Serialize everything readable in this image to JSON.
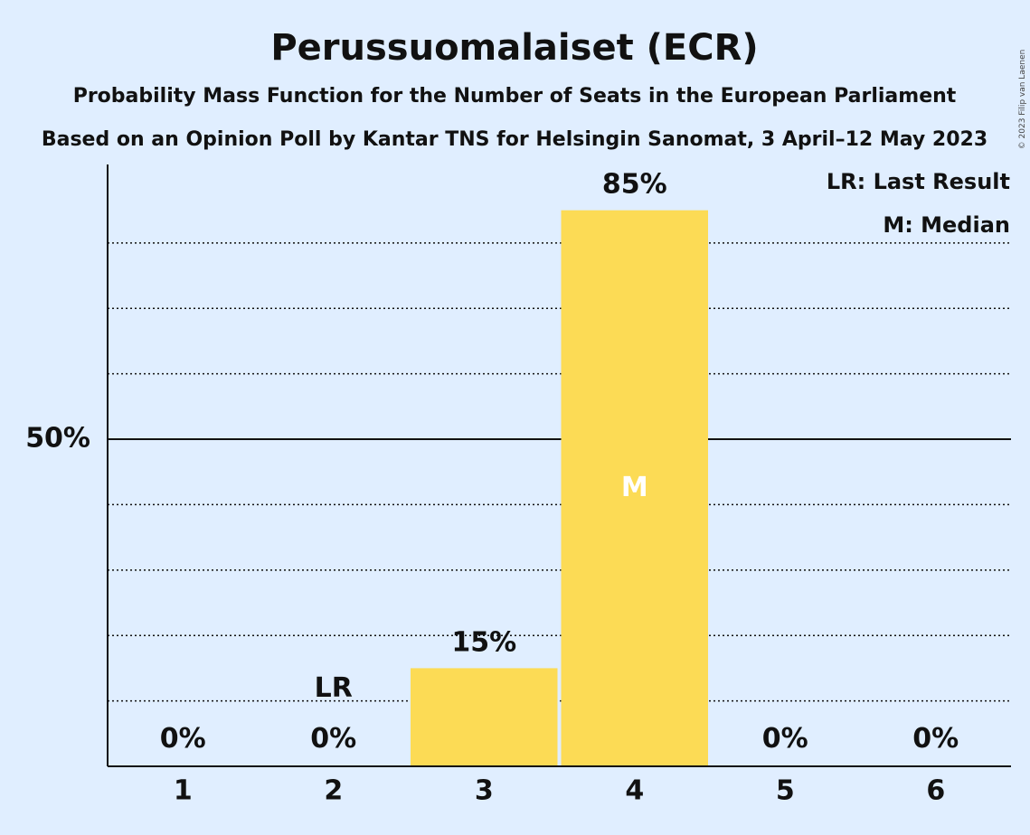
{
  "chart_data": {
    "type": "bar",
    "title": "Perussuomalaiset (ECR)",
    "subtitle": "Probability Mass Function for the Number of Seats in the European Parliament",
    "subtitle2": "Based on an Opinion Poll by Kantar TNS for Helsingin Sanomat, 3 April–12 May 2023",
    "categories": [
      "1",
      "2",
      "3",
      "4",
      "5",
      "6"
    ],
    "values": [
      0,
      0,
      15,
      85,
      0,
      0
    ],
    "value_labels": [
      "0%",
      "0%",
      "15%",
      "85%",
      "0%",
      "0%"
    ],
    "ylim": [
      0,
      92
    ],
    "ytick_label": "50%",
    "ytick_value": 50,
    "grid_lines": [
      10,
      20,
      30,
      40,
      60,
      70,
      80
    ],
    "last_result_category": "2",
    "last_result_marker": "LR",
    "median_category": "4",
    "median_marker": "M",
    "legend": [
      "LR: Last Result",
      "M: Median"
    ],
    "legend_position": "top-right",
    "copyright": "© 2023 Filip van Laenen",
    "colors": {
      "bar": "#fcdb55",
      "background": "#e0eeff",
      "median_text": "#ffffff"
    }
  }
}
